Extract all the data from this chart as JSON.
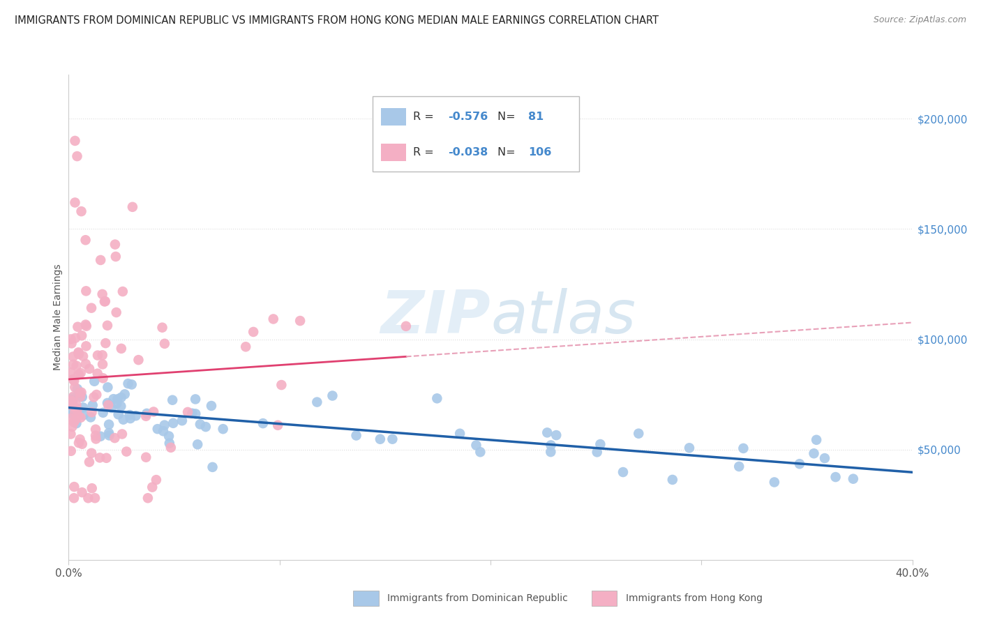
{
  "title": "IMMIGRANTS FROM DOMINICAN REPUBLIC VS IMMIGRANTS FROM HONG KONG MEDIAN MALE EARNINGS CORRELATION CHART",
  "source": "Source: ZipAtlas.com",
  "ylabel": "Median Male Earnings",
  "xlim": [
    0.0,
    0.4
  ],
  "ylim": [
    0,
    220000
  ],
  "yticks": [
    50000,
    100000,
    150000,
    200000
  ],
  "xticks": [
    0.0,
    0.1,
    0.2,
    0.3,
    0.4
  ],
  "legend_blue_r": "-0.576",
  "legend_blue_n": "81",
  "legend_pink_r": "-0.038",
  "legend_pink_n": "106",
  "blue_color": "#a8c8e8",
  "pink_color": "#f4afc4",
  "blue_line_color": "#2060a8",
  "pink_line_color": "#e04070",
  "pink_dash_color": "#e8a0b8",
  "watermark_zip": "ZIP",
  "watermark_atlas": "atlas",
  "background_color": "#ffffff",
  "title_fontsize": 10.5,
  "label_color": "#4488cc",
  "axis_color": "#cccccc",
  "text_color": "#555555"
}
